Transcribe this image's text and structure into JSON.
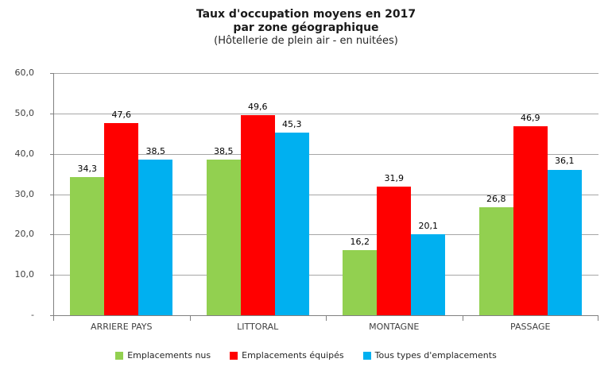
{
  "title": {
    "line1": "Taux d'occupation moyens en 2017",
    "line2": "par zone géographique",
    "line3": "(Hôtellerie de plein air - en nuitées)"
  },
  "chart_data": {
    "type": "bar",
    "title": "Taux d'occupation moyens en 2017 par zone géographique (Hôtellerie de plein air - en nuitées)",
    "categories": [
      "ARRIERE PAYS",
      "LITTORAL",
      "MONTAGNE",
      "PASSAGE"
    ],
    "series": [
      {
        "name": "Emplacements nus",
        "color": "#92D050",
        "values": [
          34.3,
          38.5,
          16.2,
          26.8
        ]
      },
      {
        "name": "Emplacements équipés",
        "color": "#FF0000",
        "values": [
          47.6,
          49.6,
          31.9,
          46.9
        ]
      },
      {
        "name": "Tous types d'emplacements",
        "color": "#00B0F0",
        "values": [
          38.5,
          45.3,
          20.1,
          36.1
        ]
      }
    ],
    "ylim": [
      0,
      60
    ],
    "y_tick_labels": [
      "60,0",
      "50,0",
      "40,0",
      "30,0",
      "20,0",
      "10,0",
      "-"
    ],
    "grid": true,
    "value_labels": true,
    "decimal_separator": ",",
    "legend_position": "bottom",
    "xlabel": "",
    "ylabel": ""
  },
  "colors": {
    "gridline": "#a6a6a6",
    "axis": "#808080",
    "text": "#404040"
  }
}
